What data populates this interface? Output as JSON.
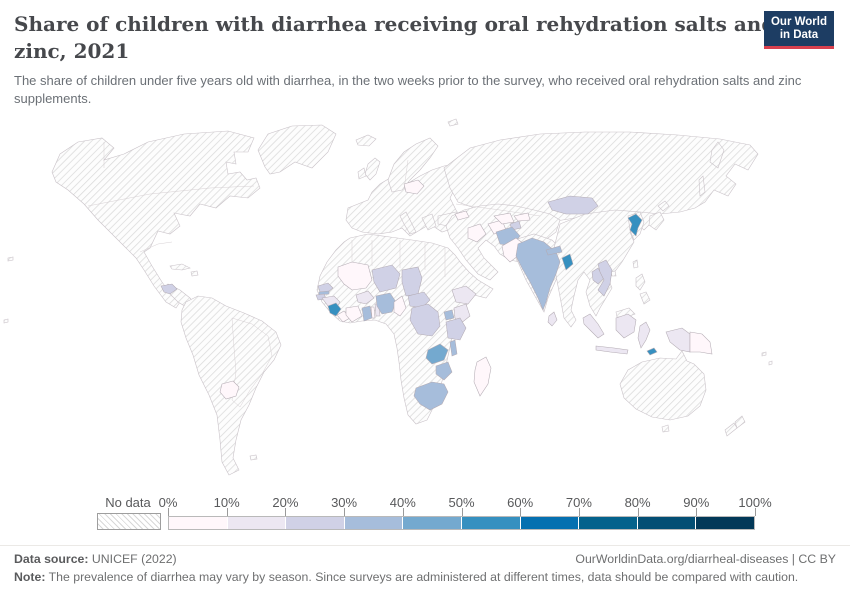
{
  "header": {
    "title": "Share of children with diarrhea receiving oral rehydration salts and zinc, 2021",
    "subtitle": "The share of children under five years old with diarrhea, in the two weeks prior to the survey, who received oral rehydration salts and zinc supplements.",
    "logo": {
      "line1": "Our World",
      "line2": "in Data",
      "bg_color": "#1d3d63",
      "accent_color": "#d8404e"
    }
  },
  "chart_data": {
    "type": "heatmap",
    "subtype": "world-choropleth-map",
    "title": "Share of children with diarrhea receiving oral rehydration salts and zinc",
    "year": "2021",
    "unit": "%",
    "legend": {
      "no_data_label": "No data",
      "ticks": [
        "0%",
        "10%",
        "20%",
        "30%",
        "40%",
        "50%",
        "60%",
        "70%",
        "80%",
        "90%",
        "100%"
      ],
      "colors": [
        "#fff7fb",
        "#ece7f2",
        "#d0d1e6",
        "#a6bddb",
        "#74a9cf",
        "#3690c0",
        "#0570b0",
        "#04628c",
        "#034e74",
        "#023858"
      ],
      "no_data_style": "diagonal-hatch"
    },
    "palette": {
      "c1": "#fff7fb",
      "c2": "#ece7f2",
      "c3": "#d0d1e6",
      "c4": "#a6bddb",
      "c5": "#74a9cf",
      "c6": "#3690c0"
    },
    "countries": [
      {
        "name": "Sierra Leone",
        "value_range": "50-60%",
        "bin": "c6"
      },
      {
        "name": "Bangladesh",
        "value_range": "50-60%",
        "bin": "c6"
      },
      {
        "name": "North Korea",
        "value_range": "50-60%",
        "bin": "c6"
      },
      {
        "name": "Timor-Leste",
        "value_range": "50-60%",
        "bin": "c6"
      },
      {
        "name": "Zambia",
        "value_range": "40-50%",
        "bin": "c5"
      },
      {
        "name": "Nigeria",
        "value_range": "30-40%",
        "bin": "c4"
      },
      {
        "name": "Ghana",
        "value_range": "30-40%",
        "bin": "c4"
      },
      {
        "name": "The Gambia",
        "value_range": "30-40%",
        "bin": "c4"
      },
      {
        "name": "India",
        "value_range": "30-40%",
        "bin": "c4"
      },
      {
        "name": "Afghanistan",
        "value_range": "30-40%",
        "bin": "c4"
      },
      {
        "name": "Nepal",
        "value_range": "30-40%",
        "bin": "c4"
      },
      {
        "name": "Uganda",
        "value_range": "30-40%",
        "bin": "c4"
      },
      {
        "name": "Malawi",
        "value_range": "30-40%",
        "bin": "c4"
      },
      {
        "name": "Zimbabwe",
        "value_range": "30-40%",
        "bin": "c4"
      },
      {
        "name": "South Africa",
        "value_range": "30-40%",
        "bin": "c4"
      },
      {
        "name": "Niger",
        "value_range": "20-30%",
        "bin": "c3"
      },
      {
        "name": "Chad",
        "value_range": "20-30%",
        "bin": "c3"
      },
      {
        "name": "Central African Republic",
        "value_range": "20-30%",
        "bin": "c3"
      },
      {
        "name": "Democratic Republic of Congo",
        "value_range": "20-30%",
        "bin": "c3"
      },
      {
        "name": "Tanzania",
        "value_range": "20-30%",
        "bin": "c3"
      },
      {
        "name": "Senegal",
        "value_range": "20-30%",
        "bin": "c3"
      },
      {
        "name": "Guinea-Bissau",
        "value_range": "20-30%",
        "bin": "c3"
      },
      {
        "name": "Tajikistan",
        "value_range": "20-30%",
        "bin": "c3"
      },
      {
        "name": "Mongolia",
        "value_range": "20-30%",
        "bin": "c3"
      },
      {
        "name": "Laos",
        "value_range": "20-30%",
        "bin": "c3"
      },
      {
        "name": "Vietnam",
        "value_range": "20-30%",
        "bin": "c3"
      },
      {
        "name": "Honduras",
        "value_range": "20-30%",
        "bin": "c3"
      },
      {
        "name": "Ethiopia",
        "value_range": "10-20%",
        "bin": "c2"
      },
      {
        "name": "Kenya",
        "value_range": "10-20%",
        "bin": "c2"
      },
      {
        "name": "Guinea",
        "value_range": "10-20%",
        "bin": "c2"
      },
      {
        "name": "Burkina Faso",
        "value_range": "10-20%",
        "bin": "c2"
      },
      {
        "name": "Benin",
        "value_range": "10-20%",
        "bin": "c2"
      },
      {
        "name": "Sri Lanka",
        "value_range": "10-20%",
        "bin": "c2"
      },
      {
        "name": "Indonesia",
        "value_range": "10-20%",
        "bin": "c2"
      },
      {
        "name": "Liberia",
        "value_range": "0-10%",
        "bin": "c1"
      },
      {
        "name": "Côte d'Ivoire",
        "value_range": "0-10%",
        "bin": "c1"
      },
      {
        "name": "Togo",
        "value_range": "0-10%",
        "bin": "c1"
      },
      {
        "name": "Mali",
        "value_range": "0-10%",
        "bin": "c1"
      },
      {
        "name": "Cameroon",
        "value_range": "0-10%",
        "bin": "c1"
      },
      {
        "name": "Madagascar",
        "value_range": "0-10%",
        "bin": "c1"
      },
      {
        "name": "Pakistan",
        "value_range": "0-10%",
        "bin": "c1"
      },
      {
        "name": "Iraq",
        "value_range": "0-10%",
        "bin": "c1"
      },
      {
        "name": "Armenia",
        "value_range": "0-10%",
        "bin": "c1"
      },
      {
        "name": "Belarus",
        "value_range": "0-10%",
        "bin": "c1"
      },
      {
        "name": "Turkmenistan",
        "value_range": "0-10%",
        "bin": "c1"
      },
      {
        "name": "Uzbekistan",
        "value_range": "0-10%",
        "bin": "c1"
      },
      {
        "name": "Kyrgyzstan",
        "value_range": "0-10%",
        "bin": "c1"
      },
      {
        "name": "Paraguay",
        "value_range": "0-10%",
        "bin": "c1"
      },
      {
        "name": "Papua New Guinea",
        "value_range": "0-10%",
        "bin": "c1"
      }
    ],
    "no_data_note": "All remaining countries are shown with a gray diagonal-hatch pattern (No data)"
  },
  "footer": {
    "datasource_label": "Data source:",
    "datasource_value": "UNICEF (2022)",
    "link": "OurWorldinData.org/diarrheal-diseases | CC BY",
    "note_label": "Note:",
    "note_text": "The prevalence of diarrhea may vary by season. Since surveys are administered at different times, data should be compared with caution."
  }
}
